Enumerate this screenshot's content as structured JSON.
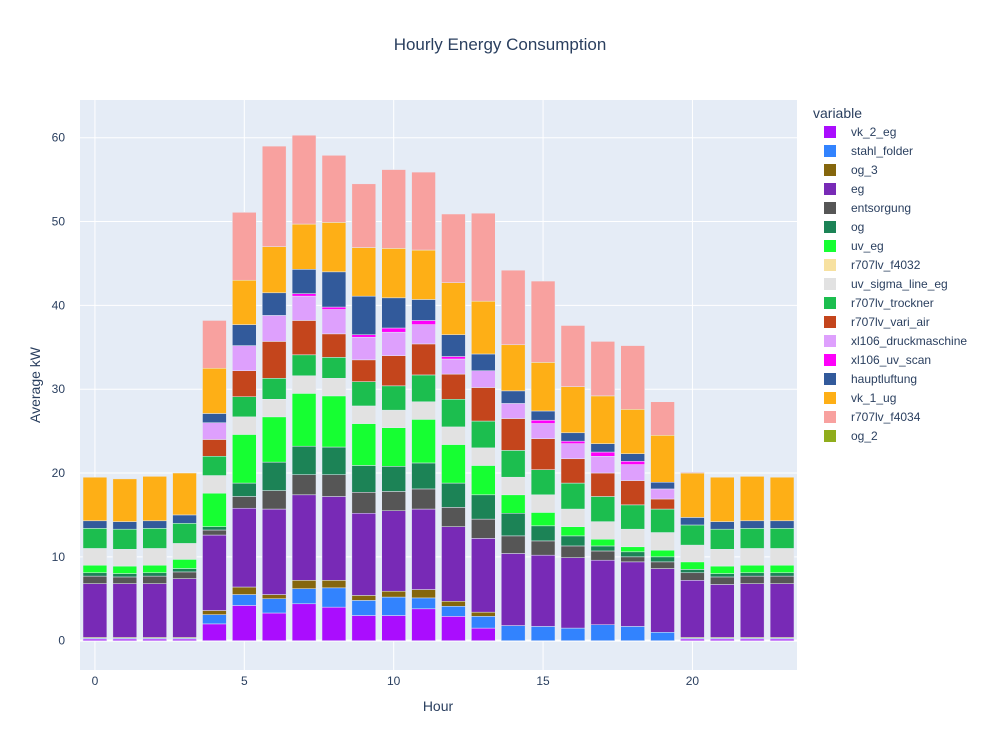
{
  "chart_data": {
    "type": "bar",
    "stacked": true,
    "title": "Hourly Energy Consumption",
    "xlabel": "Hour",
    "ylabel": "Average kW",
    "x": [
      0,
      1,
      2,
      3,
      4,
      5,
      6,
      7,
      8,
      9,
      10,
      11,
      12,
      13,
      14,
      15,
      16,
      17,
      18,
      19,
      20,
      21,
      22,
      23
    ],
    "xlim": [
      -0.5,
      23.5
    ],
    "ylim": [
      -3.5,
      64.5
    ],
    "xticks": [
      0,
      5,
      10,
      15,
      20
    ],
    "yticks": [
      0,
      10,
      20,
      30,
      40,
      50,
      60
    ],
    "grid": true,
    "legend_title": "variable",
    "legend_position": "right",
    "series": [
      {
        "name": "vk_2_eg",
        "color": "#AA0DFE",
        "values": [
          0.2,
          0.2,
          0.2,
          0.2,
          2.0,
          4.2,
          3.3,
          4.4,
          4.0,
          3.0,
          3.0,
          3.8,
          2.9,
          1.5,
          0,
          0,
          0,
          0,
          0,
          0,
          0.2,
          0.2,
          0.2,
          0.2
        ]
      },
      {
        "name": "stahl_folder",
        "color": "#3283FE",
        "values": [
          0.1,
          0.1,
          0.1,
          0.1,
          1.1,
          1.3,
          1.7,
          1.8,
          2.3,
          1.8,
          2.2,
          1.3,
          1.2,
          1.4,
          1.8,
          1.7,
          1.5,
          1.9,
          1.7,
          1.0,
          0.1,
          0.1,
          0.1,
          0.1
        ]
      },
      {
        "name": "og_3",
        "color": "#85660D",
        "values": [
          0.1,
          0.1,
          0.1,
          0.1,
          0.5,
          0.9,
          0.5,
          1.0,
          0.9,
          0.6,
          0.7,
          1.0,
          0.6,
          0.5,
          0,
          0,
          0,
          0,
          0,
          0,
          0.1,
          0.1,
          0.1,
          0.1
        ]
      },
      {
        "name": "eg",
        "color": "#782AB6",
        "values": [
          6.4,
          6.4,
          6.4,
          7.0,
          9.0,
          9.4,
          10.2,
          10.2,
          10.0,
          9.8,
          9.6,
          9.6,
          8.9,
          8.8,
          8.6,
          8.5,
          8.4,
          7.7,
          7.7,
          7.6,
          6.8,
          6.3,
          6.4,
          6.4
        ]
      },
      {
        "name": "entsorgung",
        "color": "#565656",
        "values": [
          0.9,
          0.8,
          0.9,
          0.8,
          0.6,
          1.4,
          2.2,
          2.4,
          2.6,
          2.5,
          2.3,
          2.4,
          2.3,
          2.3,
          2.1,
          1.7,
          1.4,
          1.1,
          0.6,
          0.8,
          0.9,
          0.9,
          0.9,
          0.9
        ]
      },
      {
        "name": "og",
        "color": "#1C8356",
        "values": [
          0.4,
          0.4,
          0.4,
          0.4,
          0.4,
          1.6,
          3.4,
          3.4,
          3.3,
          3.2,
          3.0,
          3.1,
          2.9,
          2.9,
          2.7,
          1.8,
          1.2,
          0.6,
          0.6,
          0.6,
          0.4,
          0.4,
          0.4,
          0.4
        ]
      },
      {
        "name": "uv_eg",
        "color": "#16FF32",
        "values": [
          0.9,
          0.9,
          0.9,
          1.1,
          4.0,
          5.8,
          5.4,
          6.3,
          6.1,
          5.0,
          4.6,
          5.2,
          4.6,
          3.5,
          2.2,
          1.6,
          1.1,
          0.8,
          0.6,
          0.8,
          0.9,
          0.9,
          0.9,
          0.9
        ]
      },
      {
        "name": "r707lv_f4032",
        "color": "#F7E1A0",
        "values": [
          0,
          0,
          0,
          0,
          0,
          0,
          0,
          0,
          0,
          0,
          0,
          0,
          0,
          0,
          0,
          0,
          0,
          0,
          0,
          0,
          0,
          0,
          0,
          0
        ]
      },
      {
        "name": "uv_sigma_line_eg",
        "color": "#E2E2E2",
        "values": [
          2.0,
          2.0,
          2.0,
          1.9,
          2.1,
          2.1,
          2.1,
          2.1,
          2.1,
          2.1,
          2.1,
          2.1,
          2.1,
          2.1,
          2.1,
          2.1,
          2.1,
          2.1,
          2.1,
          2.1,
          2.0,
          2.0,
          2.0,
          2.0
        ]
      },
      {
        "name": "r707lv_trockner",
        "color": "#1CBE4F",
        "values": [
          2.4,
          2.4,
          2.4,
          2.4,
          2.3,
          2.4,
          2.5,
          2.5,
          2.5,
          2.9,
          2.9,
          3.2,
          3.3,
          3.2,
          3.2,
          3.0,
          3.1,
          3.0,
          2.9,
          2.8,
          2.4,
          2.4,
          2.4,
          2.4
        ]
      },
      {
        "name": "r707lv_vari_air",
        "color": "#C4451C",
        "values": [
          0,
          0,
          0,
          0,
          2.0,
          3.1,
          4.4,
          4.1,
          2.8,
          2.6,
          3.6,
          3.7,
          3.0,
          4.0,
          3.8,
          3.7,
          2.9,
          2.8,
          2.9,
          1.2,
          0,
          0,
          0,
          0
        ]
      },
      {
        "name": "xl106_druckmaschine",
        "color": "#DEA0FD",
        "values": [
          0,
          0,
          0,
          0,
          2.0,
          3.0,
          3.1,
          2.9,
          2.9,
          2.7,
          2.8,
          2.3,
          1.8,
          2.0,
          1.8,
          1.8,
          1.8,
          2.0,
          1.9,
          1.2,
          0,
          0,
          0,
          0
        ]
      },
      {
        "name": "xl106_uv_scan",
        "color": "#FE00FA",
        "values": [
          0,
          0,
          0,
          0,
          0,
          0,
          0,
          0.3,
          0.3,
          0.3,
          0.5,
          0.5,
          0.3,
          0,
          0,
          0.4,
          0.3,
          0.5,
          0.4,
          0,
          0,
          0,
          0,
          0
        ]
      },
      {
        "name": "hauptluftung",
        "color": "#325A9B",
        "values": [
          0.9,
          0.9,
          0.9,
          1.0,
          1.1,
          2.5,
          2.7,
          2.9,
          4.2,
          4.6,
          3.6,
          2.5,
          2.6,
          2.0,
          1.5,
          1.1,
          1.0,
          1.0,
          0.9,
          0.8,
          0.9,
          0.9,
          0.9,
          0.9
        ]
      },
      {
        "name": "vk_1_ug",
        "color": "#FEAF16",
        "values": [
          5.2,
          5.1,
          5.3,
          5.0,
          5.4,
          5.3,
          5.5,
          5.4,
          5.9,
          5.8,
          5.9,
          5.9,
          6.2,
          6.3,
          5.5,
          5.8,
          5.5,
          5.7,
          5.3,
          5.6,
          5.3,
          5.3,
          5.3,
          5.2
        ]
      },
      {
        "name": "r707lv_f4034",
        "color": "#F8A19F",
        "values": [
          0,
          0,
          0,
          0,
          5.7,
          8.1,
          12.0,
          10.6,
          8.0,
          7.6,
          9.4,
          9.3,
          8.2,
          10.5,
          8.9,
          9.7,
          7.3,
          6.5,
          7.6,
          4.0,
          0.1,
          0,
          0,
          0
        ]
      },
      {
        "name": "og_2",
        "color": "#90AD1C",
        "values": [
          0,
          0,
          0,
          0,
          0,
          0,
          0,
          0,
          0,
          0,
          0,
          0,
          0,
          0,
          0,
          0,
          0,
          0,
          0,
          0,
          0,
          0,
          0,
          0
        ]
      }
    ]
  }
}
